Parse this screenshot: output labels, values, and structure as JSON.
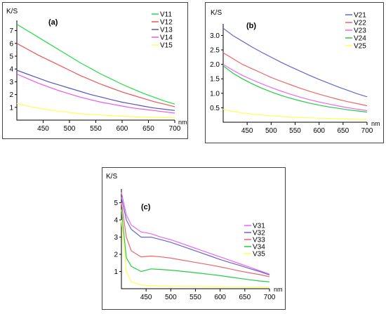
{
  "chart_data": [
    {
      "type": "line",
      "panel_label": "(a)",
      "ylabel": "K/S",
      "xlabel": "nm",
      "xlim": [
        400,
        700
      ],
      "ylim": [
        0,
        7.8
      ],
      "xticks": [
        "450",
        "500",
        "550",
        "600",
        "650",
        "700"
      ],
      "yticks": [
        "1",
        "2",
        "3",
        "4",
        "5",
        "6",
        "7"
      ],
      "legend_position": "top-right",
      "x": [
        400,
        420,
        440,
        460,
        480,
        500,
        520,
        540,
        560,
        580,
        600,
        620,
        640,
        660,
        680,
        700
      ],
      "series": [
        {
          "name": "V11",
          "color": "#22dd44",
          "values": [
            7.5,
            7.0,
            6.5,
            6.0,
            5.5,
            5.0,
            4.5,
            4.05,
            3.6,
            3.2,
            2.8,
            2.45,
            2.1,
            1.8,
            1.5,
            1.25
          ]
        },
        {
          "name": "V12",
          "color": "#ee5555",
          "values": [
            6.0,
            5.55,
            5.1,
            4.7,
            4.3,
            3.9,
            3.5,
            3.15,
            2.8,
            2.5,
            2.2,
            1.95,
            1.7,
            1.45,
            1.25,
            1.05
          ]
        },
        {
          "name": "V13",
          "color": "#5555bb",
          "values": [
            3.9,
            3.6,
            3.3,
            3.0,
            2.75,
            2.5,
            2.25,
            2.0,
            1.8,
            1.6,
            1.4,
            1.25,
            1.1,
            0.95,
            0.85,
            0.75
          ]
        },
        {
          "name": "V14",
          "color": "#ee55ee",
          "values": [
            3.6,
            3.25,
            2.9,
            2.6,
            2.3,
            2.05,
            1.8,
            1.6,
            1.4,
            1.25,
            1.1,
            0.95,
            0.85,
            0.75,
            0.65,
            0.55
          ]
        },
        {
          "name": "V15",
          "color": "#ffff55",
          "values": [
            1.3,
            1.1,
            0.95,
            0.8,
            0.7,
            0.6,
            0.5,
            0.45,
            0.4,
            0.35,
            0.3,
            0.27,
            0.24,
            0.22,
            0.2,
            0.18
          ]
        }
      ]
    },
    {
      "type": "line",
      "panel_label": "(b)",
      "ylabel": "K/S",
      "xlabel": "nm",
      "xlim": [
        400,
        700
      ],
      "ylim": [
        0,
        3.4
      ],
      "xticks": [
        "450",
        "500",
        "550",
        "600",
        "650",
        "700"
      ],
      "yticks": [
        "0.5",
        "1.0",
        "1.5",
        "2.0",
        "2.5",
        "3.0"
      ],
      "legend_position": "top-right",
      "x": [
        400,
        420,
        440,
        460,
        480,
        500,
        520,
        540,
        560,
        580,
        600,
        620,
        640,
        660,
        680,
        700
      ],
      "series": [
        {
          "name": "V21",
          "color": "#6666cc",
          "values": [
            3.25,
            3.0,
            2.8,
            2.6,
            2.42,
            2.25,
            2.08,
            1.92,
            1.77,
            1.62,
            1.48,
            1.35,
            1.22,
            1.1,
            0.98,
            0.88
          ]
        },
        {
          "name": "V22",
          "color": "#ee6666",
          "values": [
            2.4,
            2.2,
            2.0,
            1.85,
            1.7,
            1.55,
            1.42,
            1.3,
            1.18,
            1.07,
            0.97,
            0.88,
            0.79,
            0.71,
            0.64,
            0.57
          ]
        },
        {
          "name": "V23",
          "color": "#ee66ee",
          "values": [
            2.0,
            1.8,
            1.62,
            1.47,
            1.33,
            1.2,
            1.08,
            0.97,
            0.87,
            0.78,
            0.7,
            0.63,
            0.56,
            0.5,
            0.45,
            0.4
          ]
        },
        {
          "name": "V24",
          "color": "#22cc44",
          "values": [
            1.95,
            1.7,
            1.5,
            1.33,
            1.18,
            1.05,
            0.93,
            0.83,
            0.74,
            0.66,
            0.59,
            0.53,
            0.48,
            0.43,
            0.39,
            0.35
          ]
        },
        {
          "name": "V25",
          "color": "#ffff55",
          "values": [
            0.45,
            0.38,
            0.32,
            0.28,
            0.25,
            0.22,
            0.2,
            0.18,
            0.16,
            0.15,
            0.14,
            0.13,
            0.12,
            0.11,
            0.1,
            0.1
          ]
        }
      ]
    },
    {
      "type": "line",
      "panel_label": "(c)",
      "ylabel": "K/S",
      "xlabel": "nm",
      "xlim": [
        400,
        700
      ],
      "ylim": [
        0,
        5.8
      ],
      "xticks": [
        "450",
        "500",
        "550",
        "600",
        "650",
        "700"
      ],
      "yticks": [
        "1",
        "2",
        "3",
        "4",
        "5"
      ],
      "legend_position": "right",
      "x": [
        400,
        410,
        420,
        440,
        460,
        480,
        500,
        520,
        540,
        560,
        580,
        600,
        620,
        640,
        660,
        680,
        700
      ],
      "series": [
        {
          "name": "V31",
          "color": "#ee66ee",
          "values": [
            5.6,
            4.3,
            3.7,
            3.3,
            3.2,
            3.0,
            2.85,
            2.65,
            2.45,
            2.25,
            2.05,
            1.85,
            1.65,
            1.45,
            1.25,
            1.05,
            0.85
          ]
        },
        {
          "name": "V32",
          "color": "#6666cc",
          "values": [
            5.3,
            4.0,
            3.45,
            3.0,
            3.0,
            2.85,
            2.7,
            2.5,
            2.3,
            2.1,
            1.9,
            1.7,
            1.52,
            1.35,
            1.17,
            1.0,
            0.8
          ]
        },
        {
          "name": "V33",
          "color": "#ee6666",
          "values": [
            5.0,
            3.0,
            2.2,
            1.85,
            1.9,
            1.85,
            1.78,
            1.68,
            1.58,
            1.48,
            1.38,
            1.27,
            1.15,
            1.03,
            0.92,
            0.82,
            0.7
          ]
        },
        {
          "name": "V34",
          "color": "#22cc44",
          "values": [
            4.6,
            1.8,
            1.3,
            1.0,
            1.15,
            1.12,
            1.08,
            1.02,
            0.96,
            0.9,
            0.83,
            0.76,
            0.68,
            0.6,
            0.52,
            0.45,
            0.4
          ]
        },
        {
          "name": "V35",
          "color": "#ffff55",
          "values": [
            4.0,
            1.0,
            0.4,
            0.22,
            0.18,
            0.16,
            0.15,
            0.14,
            0.13,
            0.13,
            0.12,
            0.12,
            0.11,
            0.11,
            0.1,
            0.1,
            0.1
          ]
        }
      ]
    }
  ]
}
